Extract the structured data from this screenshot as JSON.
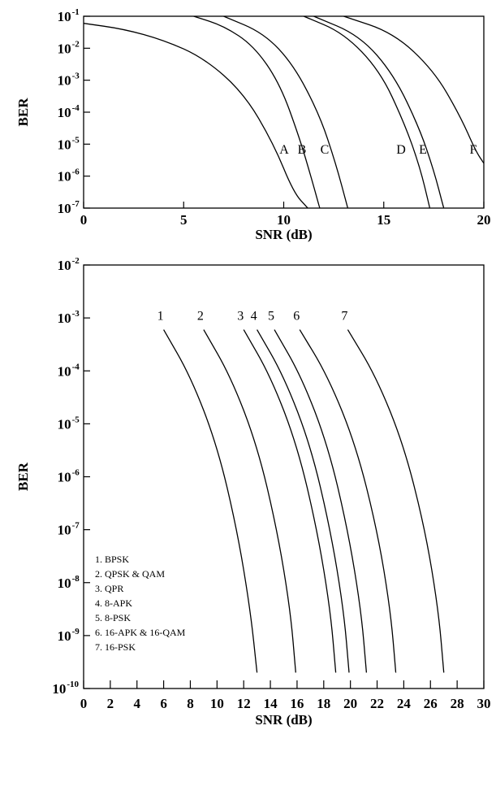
{
  "chart_data": [
    {
      "type": "line",
      "xlabel": "SNR (dB)",
      "ylabel": "BER",
      "xlim": [
        0,
        20
      ],
      "ylim_exp": [
        -7,
        -1
      ],
      "y_scale": "log",
      "x_ticks": [
        0,
        5,
        10,
        15,
        20
      ],
      "y_tick_labels": [
        {
          "base": "10",
          "exp": "-1"
        },
        {
          "base": "10",
          "exp": "-2"
        },
        {
          "base": "10",
          "exp": "-3"
        },
        {
          "base": "10",
          "exp": "-4"
        },
        {
          "base": "10",
          "exp": "-5"
        },
        {
          "base": "10",
          "exp": "-6"
        },
        {
          "base": "10",
          "exp": "-7"
        }
      ],
      "series": [
        {
          "name": "A",
          "label": "A",
          "points": [
            [
              0,
              0.06
            ],
            [
              2,
              0.04
            ],
            [
              4,
              0.018
            ],
            [
              6,
              0.005
            ],
            [
              8,
              0.0004
            ],
            [
              9.5,
              1e-05
            ],
            [
              10.5,
              3e-07
            ],
            [
              11.2,
              1e-07
            ]
          ]
        },
        {
          "name": "B",
          "label": "B",
          "points": [
            [
              5.5,
              0.1
            ],
            [
              7,
              0.05
            ],
            [
              8.5,
              0.012
            ],
            [
              9.8,
              0.0008
            ],
            [
              10.8,
              1.5e-05
            ],
            [
              11.4,
              8e-07
            ],
            [
              11.8,
              1e-07
            ]
          ]
        },
        {
          "name": "C",
          "label": "C",
          "points": [
            [
              7,
              0.1
            ],
            [
              9,
              0.03
            ],
            [
              10.5,
              0.003
            ],
            [
              11.8,
              8e-05
            ],
            [
              12.6,
              2.5e-06
            ],
            [
              13.2,
              1e-07
            ]
          ]
        },
        {
          "name": "D",
          "label": "D",
          "points": [
            [
              11,
              0.1
            ],
            [
              13,
              0.03
            ],
            [
              14.8,
              0.002
            ],
            [
              16,
              5e-05
            ],
            [
              16.8,
              2e-06
            ],
            [
              17.3,
              1e-07
            ]
          ]
        },
        {
          "name": "E",
          "label": "E",
          "points": [
            [
              11.5,
              0.1
            ],
            [
              13.8,
              0.025
            ],
            [
              15.5,
              0.0015
            ],
            [
              16.8,
              3e-05
            ],
            [
              17.5,
              1.5e-06
            ],
            [
              18,
              1e-07
            ]
          ]
        },
        {
          "name": "F",
          "label": "F",
          "points": [
            [
              13,
              0.1
            ],
            [
              15.5,
              0.03
            ],
            [
              17.5,
              0.002
            ],
            [
              18.8,
              8e-05
            ],
            [
              19.6,
              6e-06
            ],
            [
              20,
              2.5e-06
            ]
          ]
        }
      ]
    },
    {
      "type": "line",
      "xlabel": "SNR (dB)",
      "ylabel": "BER",
      "xlim": [
        0,
        30
      ],
      "ylim_exp": [
        -10,
        -2
      ],
      "y_scale": "log",
      "x_ticks": [
        0,
        2,
        4,
        6,
        8,
        10,
        12,
        14,
        16,
        18,
        20,
        22,
        24,
        26,
        28,
        30
      ],
      "y_tick_labels": [
        {
          "base": "10",
          "exp": "-2"
        },
        {
          "base": "10",
          "exp": "-3"
        },
        {
          "base": "10",
          "exp": "-4"
        },
        {
          "base": "10",
          "exp": "-5"
        },
        {
          "base": "10",
          "exp": "-6"
        },
        {
          "base": "10",
          "exp": "-7"
        },
        {
          "base": "10",
          "exp": "-8"
        },
        {
          "base": "10",
          "exp": "-9"
        },
        {
          "base": "10",
          "exp": "-10"
        }
      ],
      "legend": [
        "1. BPSK",
        "2. QPSK & QAM",
        "3. QPR",
        "4. 8-APK",
        "5. 8-PSK",
        "6. 16-APK & 16-QAM",
        "7. 16-PSK"
      ],
      "series": [
        {
          "name": "BPSK",
          "label": "1",
          "points": [
            [
              6,
              0.0006
            ],
            [
              8,
              8e-05
            ],
            [
              10,
              4e-06
            ],
            [
              11.5,
              1e-07
            ],
            [
              12.5,
              3e-09
            ],
            [
              13,
              2e-10
            ]
          ]
        },
        {
          "name": "QPSK & QAM",
          "label": "2",
          "points": [
            [
              9,
              0.0006
            ],
            [
              11,
              8e-05
            ],
            [
              13,
              4e-06
            ],
            [
              14.5,
              1e-07
            ],
            [
              15.5,
              3e-09
            ],
            [
              15.9,
              2e-10
            ]
          ]
        },
        {
          "name": "QPR",
          "label": "3",
          "points": [
            [
              12,
              0.0006
            ],
            [
              14,
              8e-05
            ],
            [
              16,
              4e-06
            ],
            [
              17.5,
              1e-07
            ],
            [
              18.5,
              3e-09
            ],
            [
              18.9,
              2e-10
            ]
          ]
        },
        {
          "name": "8-APK",
          "label": "4",
          "points": [
            [
              13,
              0.0006
            ],
            [
              15,
              8e-05
            ],
            [
              17,
              4e-06
            ],
            [
              18.5,
              1e-07
            ],
            [
              19.5,
              3e-09
            ],
            [
              19.9,
              2e-10
            ]
          ]
        },
        {
          "name": "8-PSK",
          "label": "5",
          "points": [
            [
              14.3,
              0.0006
            ],
            [
              16.3,
              8e-05
            ],
            [
              18.3,
              4e-06
            ],
            [
              19.8,
              1e-07
            ],
            [
              20.8,
              3e-09
            ],
            [
              21.2,
              2e-10
            ]
          ]
        },
        {
          "name": "16-APK & 16-QAM",
          "label": "6",
          "points": [
            [
              16.2,
              0.0006
            ],
            [
              18.3,
              8e-05
            ],
            [
              20.4,
              4e-06
            ],
            [
              22,
              1e-07
            ],
            [
              23,
              3e-09
            ],
            [
              23.4,
              2e-10
            ]
          ]
        },
        {
          "name": "16-PSK",
          "label": "7",
          "points": [
            [
              19.8,
              0.0006
            ],
            [
              21.9,
              8e-05
            ],
            [
              24,
              4e-06
            ],
            [
              25.6,
              1e-07
            ],
            [
              26.6,
              3e-09
            ],
            [
              27,
              2e-10
            ]
          ]
        }
      ]
    }
  ]
}
